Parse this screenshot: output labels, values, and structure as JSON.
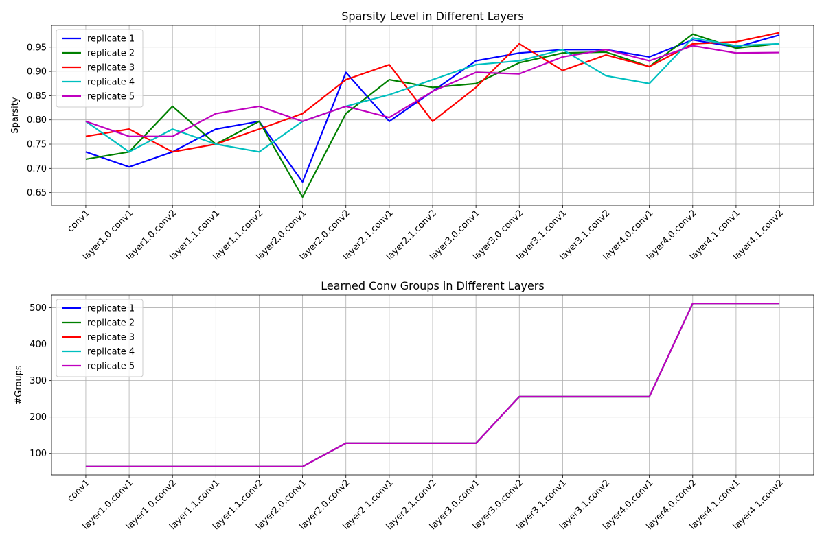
{
  "chart_data": [
    {
      "type": "line",
      "title": "Sparsity Level in Different Layers",
      "xlabel": "",
      "ylabel": "Sparsity",
      "categories": [
        "conv1",
        "layer1.0.conv1",
        "layer1.0.conv2",
        "layer1.1.conv1",
        "layer1.1.conv2",
        "layer2.0.conv1",
        "layer2.0.conv2",
        "layer2.1.conv1",
        "layer2.1.conv2",
        "layer3.0.conv1",
        "layer3.0.conv2",
        "layer3.1.conv1",
        "layer3.1.conv2",
        "layer4.0.conv1",
        "layer4.0.conv2",
        "layer4.1.conv1",
        "layer4.1.conv2"
      ],
      "yticks": [
        0.65,
        0.7,
        0.75,
        0.8,
        0.85,
        0.9,
        0.95
      ],
      "ytick_labels": [
        "0.65",
        "0.70",
        "0.75",
        "0.80",
        "0.85",
        "0.90",
        "0.95"
      ],
      "ylim": [
        0.624,
        0.995
      ],
      "grid": true,
      "legend": "upper-left",
      "series": [
        {
          "name": "replicate 1",
          "color": "#0000ff",
          "values": [
            0.734,
            0.703,
            0.734,
            0.781,
            0.797,
            0.672,
            0.898,
            0.797,
            0.859,
            0.922,
            0.938,
            0.945,
            0.945,
            0.93,
            0.965,
            0.95,
            0.975
          ]
        },
        {
          "name": "replicate 2",
          "color": "#008000",
          "values": [
            0.719,
            0.734,
            0.828,
            0.75,
            0.797,
            0.641,
            0.813,
            0.883,
            0.867,
            0.875,
            0.918,
            0.938,
            0.94,
            0.91,
            0.977,
            0.948,
            0.957
          ]
        },
        {
          "name": "replicate 3",
          "color": "#ff0000",
          "values": [
            0.766,
            0.781,
            0.734,
            0.75,
            0.781,
            0.813,
            0.883,
            0.914,
            0.797,
            0.867,
            0.957,
            0.902,
            0.934,
            0.91,
            0.957,
            0.961,
            0.98
          ]
        },
        {
          "name": "replicate 4",
          "color": "#00bfbf",
          "values": [
            0.797,
            0.734,
            0.781,
            0.75,
            0.734,
            0.797,
            0.828,
            0.852,
            0.883,
            0.914,
            0.922,
            0.945,
            0.891,
            0.875,
            0.969,
            0.953,
            0.957
          ]
        },
        {
          "name": "replicate 5",
          "color": "#bf00bf",
          "values": [
            0.797,
            0.766,
            0.766,
            0.813,
            0.828,
            0.797,
            0.828,
            0.805,
            0.859,
            0.898,
            0.895,
            0.93,
            0.945,
            0.922,
            0.953,
            0.938,
            0.939
          ]
        }
      ]
    },
    {
      "type": "line",
      "title": "Learned Conv Groups in Different Layers",
      "xlabel": "",
      "ylabel": "#Groups",
      "categories": [
        "conv1",
        "layer1.0.conv1",
        "layer1.0.conv2",
        "layer1.1.conv1",
        "layer1.1.conv2",
        "layer2.0.conv1",
        "layer2.0.conv2",
        "layer2.1.conv1",
        "layer2.1.conv2",
        "layer3.0.conv1",
        "layer3.0.conv2",
        "layer3.1.conv1",
        "layer3.1.conv2",
        "layer4.0.conv1",
        "layer4.0.conv2",
        "layer4.1.conv1",
        "layer4.1.conv2"
      ],
      "yticks": [
        100,
        200,
        300,
        400,
        500
      ],
      "ytick_labels": [
        "100",
        "200",
        "300",
        "400",
        "500"
      ],
      "ylim": [
        41,
        535
      ],
      "grid": true,
      "legend": "upper-left",
      "series": [
        {
          "name": "replicate 1",
          "color": "#0000ff",
          "values": [
            64,
            64,
            64,
            64,
            64,
            64,
            128,
            128,
            128,
            128,
            256,
            256,
            256,
            256,
            512,
            512,
            512
          ]
        },
        {
          "name": "replicate 2",
          "color": "#008000",
          "values": [
            64,
            64,
            64,
            64,
            64,
            64,
            128,
            128,
            128,
            128,
            256,
            256,
            256,
            256,
            512,
            512,
            512
          ]
        },
        {
          "name": "replicate 3",
          "color": "#ff0000",
          "values": [
            64,
            64,
            64,
            64,
            64,
            64,
            128,
            128,
            128,
            128,
            256,
            256,
            256,
            256,
            512,
            512,
            512
          ]
        },
        {
          "name": "replicate 4",
          "color": "#00bfbf",
          "values": [
            64,
            64,
            64,
            64,
            64,
            64,
            128,
            128,
            128,
            128,
            256,
            256,
            256,
            256,
            512,
            512,
            512
          ]
        },
        {
          "name": "replicate 5",
          "color": "#bf00bf",
          "values": [
            64,
            64,
            64,
            64,
            64,
            64,
            128,
            128,
            128,
            128,
            256,
            256,
            256,
            256,
            512,
            512,
            512
          ]
        }
      ]
    }
  ]
}
